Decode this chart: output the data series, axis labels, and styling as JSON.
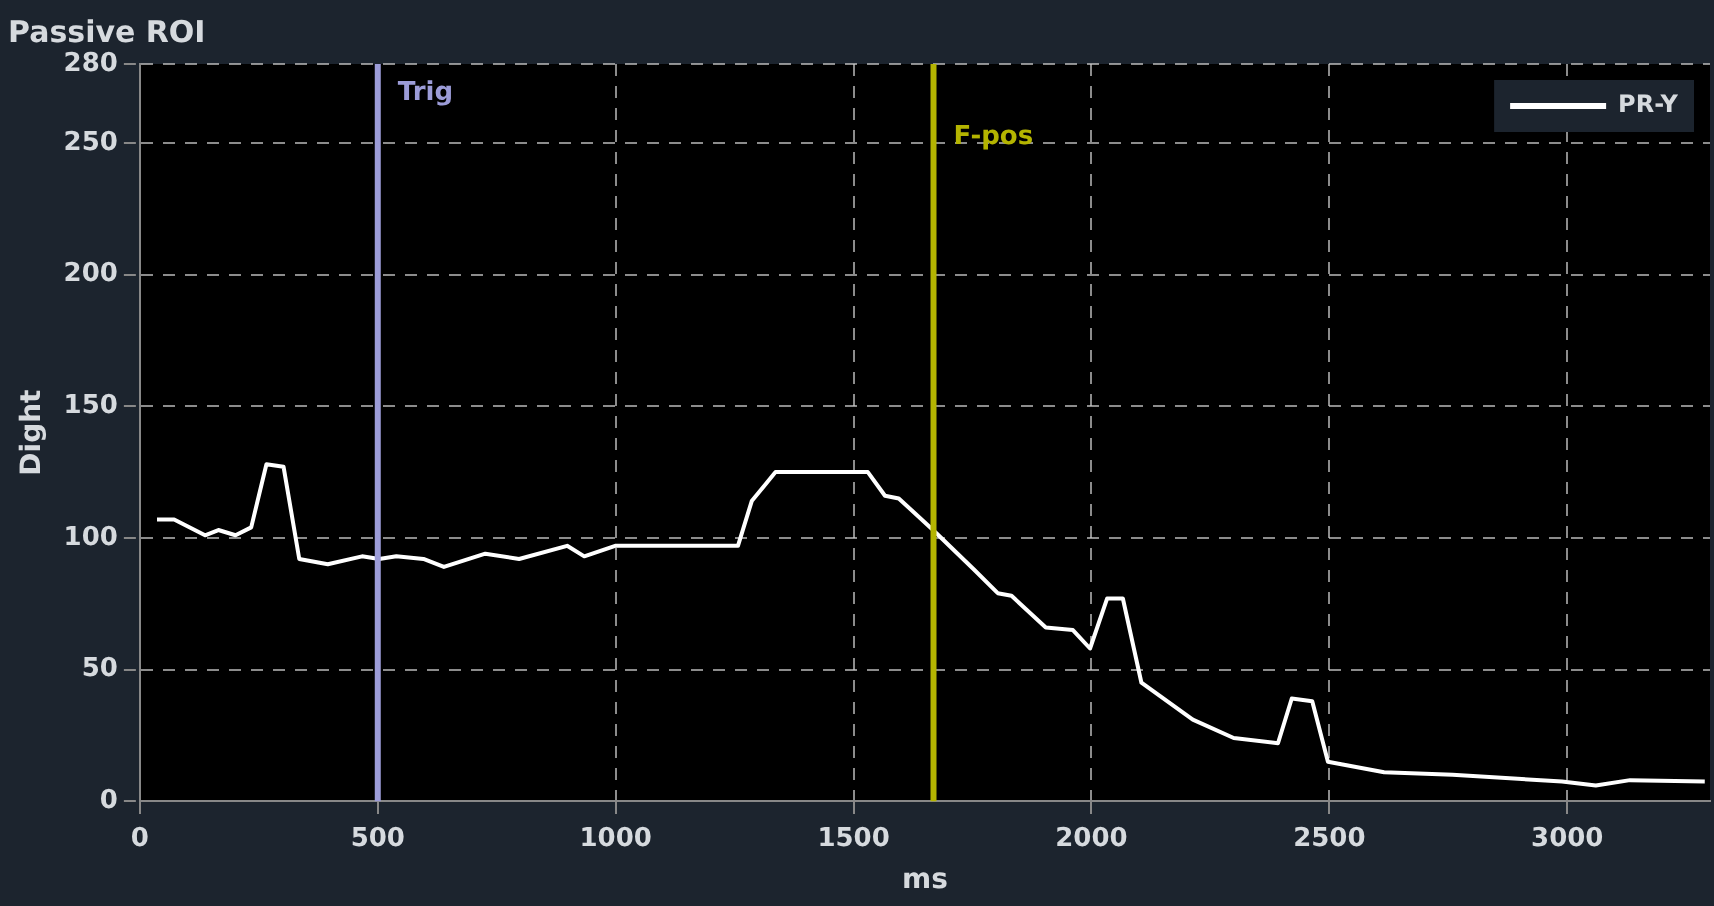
{
  "chart_data": {
    "type": "line",
    "title": "Passive ROI",
    "xlabel": "ms",
    "ylabel": "Dight",
    "x": [
      36,
      72,
      137,
      165,
      201,
      234,
      266,
      302,
      335,
      395,
      467,
      503,
      539,
      596,
      639,
      726,
      797,
      898,
      934,
      999,
      1257,
      1286,
      1336,
      1530,
      1566,
      1595,
      1667,
      1753,
      1803,
      1832,
      1904,
      1961,
      1997,
      2033,
      2066,
      2105,
      2213,
      2299,
      2392,
      2421,
      2464,
      2497,
      2615,
      2759,
      2989,
      3060,
      3132,
      3289
    ],
    "series": [
      {
        "name": "PR-Y",
        "color": "#ffffff",
        "values": [
          107,
          107,
          101,
          103,
          101,
          104,
          128,
          127,
          92,
          90,
          93,
          92,
          93,
          92,
          89,
          94,
          92,
          97,
          93,
          97,
          97,
          114,
          125,
          125,
          116,
          115,
          103,
          88,
          79,
          78,
          66,
          65,
          58,
          77,
          77,
          45,
          31,
          24,
          22,
          39,
          38,
          15,
          11,
          10,
          7.5,
          6,
          8,
          7.5
        ]
      }
    ],
    "xlim": [
      0,
      3300
    ],
    "xticks": [
      0,
      500,
      1000,
      1500,
      2000,
      2500,
      3000
    ],
    "ylim": [
      0,
      280
    ],
    "yticks": [
      0,
      50,
      100,
      150,
      200,
      250,
      280
    ],
    "grid": true,
    "legend": "top right",
    "marker": "none",
    "line_style": "solid",
    "ref_lines": [
      {
        "axis": "x",
        "value": 500,
        "label": "Trig",
        "color": "#9c9cd8"
      },
      {
        "axis": "x",
        "value": 1668,
        "label": "F-pos",
        "color": "#b4b400"
      }
    ]
  }
}
